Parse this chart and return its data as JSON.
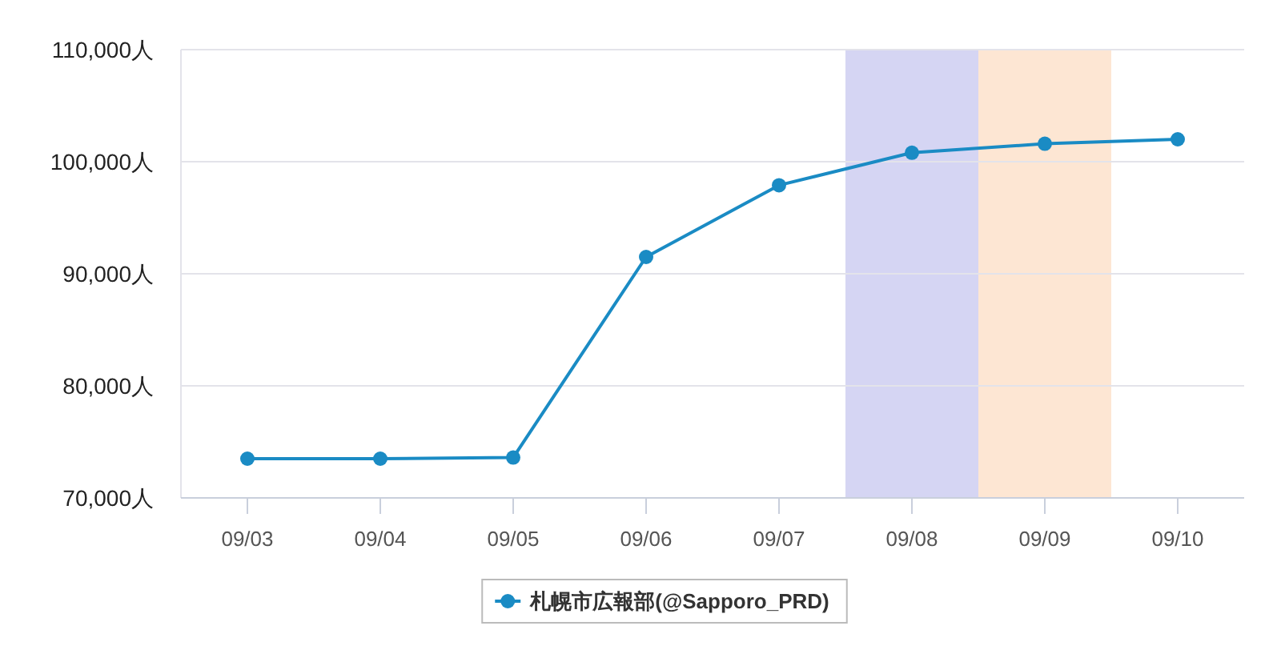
{
  "chart_data": {
    "type": "line",
    "categories": [
      "09/03",
      "09/04",
      "09/05",
      "09/06",
      "09/07",
      "09/08",
      "09/09",
      "09/10"
    ],
    "series": [
      {
        "name": "札幌市広報部(@Sapporo_PRD)",
        "color": "#1a8bc4",
        "values": [
          73500,
          73500,
          73600,
          91500,
          97900,
          100800,
          101600,
          102000
        ]
      }
    ],
    "ylim": [
      70000,
      110000
    ],
    "yticks": [
      {
        "value": 70000,
        "label": "70,000人"
      },
      {
        "value": 80000,
        "label": "80,000人"
      },
      {
        "value": 90000,
        "label": "90,000人"
      },
      {
        "value": 100000,
        "label": "100,000人"
      },
      {
        "value": 110000,
        "label": "110,000人"
      }
    ],
    "bands": [
      {
        "axis": "x",
        "from": "09/08",
        "to": "09/08",
        "color": "#d5d5f3"
      },
      {
        "axis": "x",
        "from": "09/09",
        "to": "09/09",
        "color": "#fde6d3"
      }
    ],
    "grid": "y",
    "legend": "bottom",
    "marker": "circle",
    "line_style": "solid"
  }
}
